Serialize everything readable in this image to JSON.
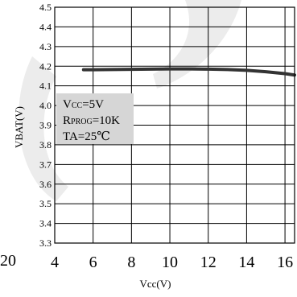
{
  "chart_data": {
    "type": "line",
    "title": "",
    "xlabel": "Vcc(V)",
    "ylabel": "VBAT(V)",
    "xlim": [
      4,
      16.5
    ],
    "ylim": [
      3.3,
      4.5
    ],
    "x_ticks": [
      "4",
      "6",
      "8",
      "10",
      "12",
      "14",
      "16"
    ],
    "y_ticks": [
      "3.3",
      "3.4",
      "3.5",
      "3.6",
      "3.7",
      "3.8",
      "3.9",
      "4.0",
      "4.1",
      "4.2",
      "4.3",
      "4.4",
      "4.5"
    ],
    "stray_left_label": "20",
    "grid": true,
    "legend": "none",
    "series": [
      {
        "color": "#333333",
        "x": [
          5.5,
          6,
          7,
          8,
          9,
          10,
          11,
          12,
          13,
          14,
          15,
          16,
          16.5
        ],
        "y": [
          4.182,
          4.182,
          4.183,
          4.184,
          4.185,
          4.186,
          4.186,
          4.185,
          4.183,
          4.179,
          4.172,
          4.162,
          4.155
        ]
      }
    ],
    "annotation": {
      "line1_main": "V",
      "line1_sub": "CC",
      "line1_rest": "=5V",
      "line2_main": "R",
      "line2_sub": "PROG",
      "line2_rest": "=10K",
      "line3": "TA=25℃"
    }
  }
}
